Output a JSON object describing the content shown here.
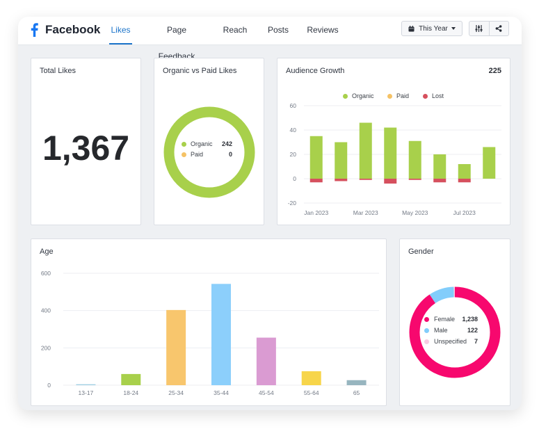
{
  "header": {
    "brand": "Facebook",
    "tabs": [
      {
        "label": "Likes",
        "active": true
      },
      {
        "label": "Page Feedback",
        "active": false
      },
      {
        "label": "Reach",
        "active": false
      },
      {
        "label": "Posts",
        "active": false
      },
      {
        "label": "Reviews",
        "active": false
      }
    ],
    "period_label": "This Year",
    "icons": [
      "calendar-icon",
      "filter-sliders-icon",
      "share-icon"
    ]
  },
  "colors": {
    "accent": "#1a73c9",
    "organic": "#a8d04b",
    "paid": "#f5c265",
    "lost": "#d6505e",
    "female": "#f7086e",
    "male": "#82cdfb",
    "unspecified": "#f8cce3"
  },
  "total_likes": {
    "title": "Total Likes",
    "value": "1,367"
  },
  "organic_paid": {
    "title": "Organic vs Paid Likes",
    "items": [
      {
        "label": "Organic",
        "value": "242",
        "color": "#a8d04b",
        "share": 1
      },
      {
        "label": "Paid",
        "value": "0",
        "color": "#f5c265",
        "share": 0
      }
    ]
  },
  "audience_growth": {
    "title": "Audience Growth",
    "total": "225",
    "legend": [
      {
        "label": "Organic",
        "color": "#a8d04b"
      },
      {
        "label": "Paid",
        "color": "#f5c265"
      },
      {
        "label": "Lost",
        "color": "#d6505e"
      }
    ],
    "chart_data": {
      "type": "bar",
      "stacked": true,
      "categories": [
        "Jan 2023",
        "Feb 2023",
        "Mar 2023",
        "Apr 2023",
        "May 2023",
        "Jun 2023",
        "Jul 2023",
        "Aug 2023"
      ],
      "x_tick_labels": [
        "Jan 2023",
        "Mar 2023",
        "May 2023",
        "Jul 2023"
      ],
      "series": [
        {
          "name": "Organic",
          "values": [
            35,
            30,
            46,
            42,
            31,
            20,
            12,
            26
          ]
        },
        {
          "name": "Paid",
          "values": [
            0,
            0,
            0,
            0,
            0,
            0,
            0,
            0
          ]
        },
        {
          "name": "Lost",
          "values": [
            -3,
            -2,
            -1,
            -4,
            -1,
            -3,
            -3,
            0
          ]
        }
      ],
      "ylim": [
        -20,
        60
      ],
      "yticks": [
        -20,
        0,
        20,
        40,
        60
      ],
      "grid": true,
      "legend_position": "top"
    }
  },
  "age": {
    "title": "Age",
    "chart_data": {
      "type": "bar",
      "categories": [
        "13-17",
        "18-24",
        "25-34",
        "35-44",
        "45-54",
        "55-64",
        "65"
      ],
      "values": [
        5,
        60,
        403,
        543,
        255,
        75,
        27
      ],
      "colors": [
        "#9fcfe3",
        "#a8d04b",
        "#f8c66d",
        "#8ccffb",
        "#da9bd2",
        "#f7d54a",
        "#97b5bf"
      ],
      "ylim": [
        0,
        600
      ],
      "yticks": [
        0,
        200,
        400,
        600
      ],
      "grid": true
    }
  },
  "gender": {
    "title": "Gender",
    "chart_data": {
      "type": "pie",
      "donut": true,
      "labels": [
        "Female",
        "Male",
        "Unspecified"
      ],
      "values": [
        1238,
        122,
        7
      ],
      "display_values": [
        "1,238",
        "122",
        "7"
      ],
      "colors": [
        "#f7086e",
        "#82cdfb",
        "#f8cce3"
      ]
    }
  }
}
